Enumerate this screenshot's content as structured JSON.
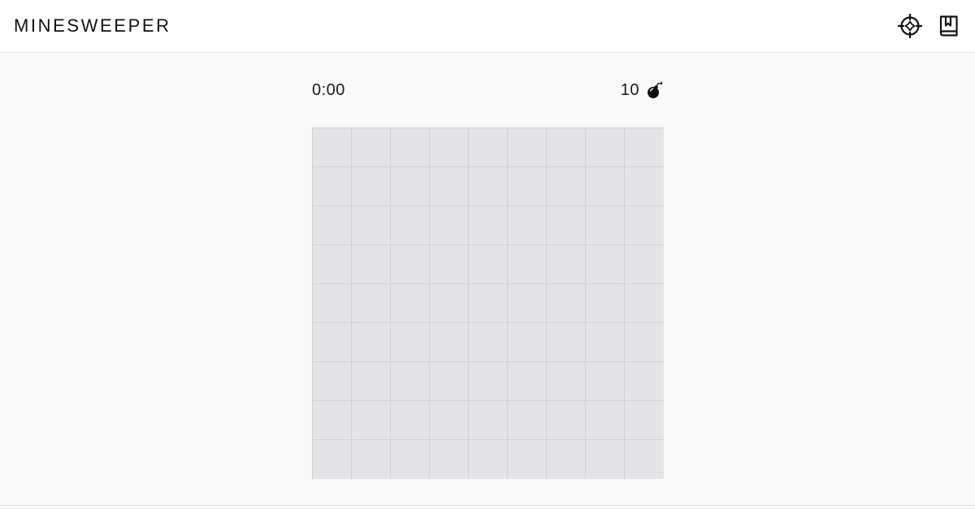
{
  "app": {
    "title": "MINESWEEPER"
  },
  "header": {
    "icons": [
      {
        "name": "crosshair-icon",
        "label": "Reveal"
      },
      {
        "name": "book-icon",
        "label": "Rules"
      }
    ]
  },
  "status": {
    "timer": "0:00",
    "mines_remaining": "10",
    "mine_icon": "bomb-icon"
  },
  "board": {
    "rows": 9,
    "cols": 9,
    "cell_state": "hidden"
  },
  "colors": {
    "cell_hidden": "#e4e4e6",
    "grid_line": "#d2d2d4",
    "background": "#f9f9f9",
    "header_bg": "#ffffff"
  }
}
